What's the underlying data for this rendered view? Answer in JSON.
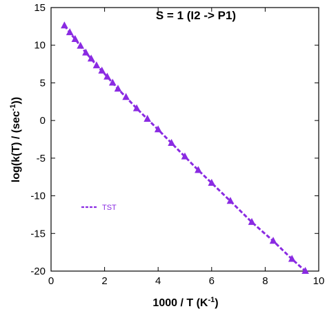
{
  "chart_data": {
    "type": "line",
    "title": "S = 1 (I2 -> P1)",
    "xlabel_main": "1000 / T (K",
    "xlabel_sup": "-1",
    "xlabel_end": ")",
    "ylabel_main": "log(k(T) / (sec",
    "ylabel_sup": "-1",
    "ylabel_end": "))",
    "xlim": [
      0,
      10
    ],
    "ylim": [
      -20,
      15
    ],
    "xticks": [
      "0",
      "2",
      "4",
      "6",
      "8",
      "10"
    ],
    "yticks": [
      "15",
      "10",
      "5",
      "0",
      "-5",
      "-10",
      "-15",
      "-20"
    ],
    "legend_position": "lower-left",
    "series": [
      {
        "name": "TST",
        "color": "#8a2be2",
        "marker": "triangle",
        "dashed": true,
        "x": [
          0.5,
          0.7,
          0.9,
          1.1,
          1.3,
          1.5,
          1.7,
          1.9,
          2.1,
          2.3,
          2.5,
          2.8,
          3.2,
          3.6,
          4.0,
          4.5,
          5.0,
          5.5,
          6.0,
          6.7,
          7.5,
          8.3,
          9.0,
          9.5
        ],
        "y": [
          12.6,
          11.7,
          10.8,
          9.9,
          9.0,
          8.2,
          7.3,
          6.6,
          5.8,
          5.0,
          4.2,
          3.1,
          1.6,
          0.2,
          -1.2,
          -3.0,
          -4.8,
          -6.6,
          -8.3,
          -10.7,
          -13.5,
          -16.0,
          -18.4,
          -20.0
        ]
      }
    ]
  }
}
